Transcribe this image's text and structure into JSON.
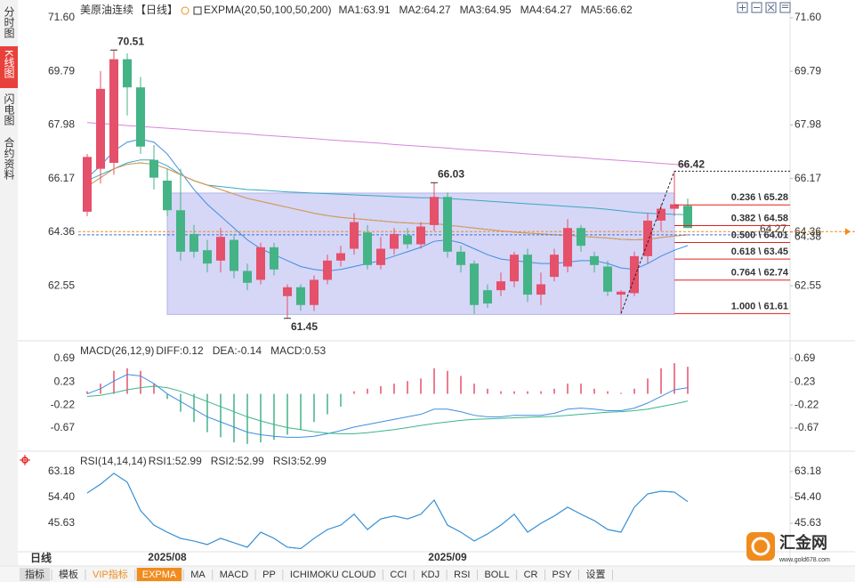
{
  "sidebar": [
    {
      "label": "分时图"
    },
    {
      "label": "K线图",
      "active": true
    },
    {
      "label": "闪电图"
    },
    {
      "label": "合约资料"
    }
  ],
  "chart_data": [
    {
      "type": "candlestick",
      "title": "美原油连续",
      "period_label": "【日线】",
      "indicator": "EXPMA(20,50,100,50,200)",
      "categories": [
        null,
        null,
        null,
        null,
        null,
        null,
        "2025/08",
        null,
        null,
        null,
        null,
        null,
        null,
        null,
        null,
        null,
        null,
        null,
        null,
        null,
        null,
        null,
        null,
        null,
        null,
        null,
        null,
        "2025/09",
        null,
        null,
        null,
        null,
        null,
        null,
        null,
        null,
        null,
        null,
        null,
        null,
        null,
        null,
        null,
        null,
        null,
        null
      ],
      "open": [
        65.05,
        66.5,
        66.7,
        70.2,
        69.25,
        66.8,
        66.1,
        65.1,
        64.3,
        63.75,
        63.4,
        64.1,
        63.05,
        62.75,
        63.85,
        62.2,
        62.5,
        61.9,
        62.75,
        63.4,
        63.8,
        64.35,
        63.25,
        63.8,
        64.25,
        63.95,
        64.6,
        65.55,
        63.7,
        63.3,
        62.4,
        62.4,
        62.7,
        63.6,
        62.25,
        62.85,
        63.2,
        64.5,
        63.55,
        63.2,
        62.25,
        62.3,
        63.55,
        64.75,
        65.15,
        65.25
      ],
      "close": [
        66.9,
        69.2,
        70.2,
        69.25,
        67.25,
        66.2,
        65.1,
        63.7,
        63.7,
        63.3,
        64.2,
        63.05,
        62.65,
        63.85,
        63.1,
        62.5,
        61.9,
        62.75,
        63.4,
        63.65,
        64.7,
        63.25,
        63.8,
        64.3,
        63.95,
        64.55,
        65.55,
        63.7,
        63.25,
        61.9,
        61.95,
        62.7,
        63.6,
        62.25,
        62.6,
        63.6,
        64.5,
        63.9,
        63.25,
        62.35,
        62.35,
        63.55,
        64.75,
        65.15,
        65.3,
        64.5
      ],
      "high": [
        67.0,
        69.8,
        70.51,
        70.4,
        69.6,
        67.3,
        66.5,
        66.5,
        64.6,
        64.1,
        64.5,
        64.3,
        63.3,
        64.0,
        64.0,
        62.6,
        62.6,
        62.9,
        63.6,
        63.9,
        65.0,
        64.6,
        64.2,
        64.5,
        64.5,
        64.7,
        66.03,
        65.7,
        63.9,
        63.4,
        62.6,
        63.0,
        63.7,
        63.8,
        63.0,
        63.8,
        64.8,
        64.6,
        63.7,
        63.4,
        62.4,
        63.7,
        65.0,
        65.3,
        66.42,
        65.5
      ],
      "low": [
        64.9,
        66.0,
        66.3,
        68.3,
        67.0,
        65.8,
        64.9,
        63.4,
        63.5,
        63.0,
        63.0,
        62.8,
        62.4,
        62.6,
        62.9,
        61.45,
        61.7,
        61.7,
        62.6,
        63.2,
        63.6,
        63.1,
        63.1,
        63.6,
        63.8,
        63.8,
        64.4,
        63.5,
        63.0,
        61.6,
        61.8,
        62.2,
        62.5,
        62.0,
        61.9,
        62.7,
        63.0,
        63.7,
        63.0,
        62.2,
        61.61,
        62.2,
        63.3,
        64.4,
        64.9,
        64.5
      ],
      "up_color": "#e5506a",
      "down_color": "#44b386",
      "series": [
        {
          "name": "MA1:63.91",
          "color": "#3d8ee0",
          "values": [
            66.2,
            66.6,
            67.1,
            67.4,
            67.5,
            67.4,
            67.0,
            66.4,
            65.8,
            65.3,
            64.9,
            64.5,
            64.1,
            63.8,
            63.6,
            63.4,
            63.2,
            63.1,
            63.05,
            63.1,
            63.2,
            63.3,
            63.4,
            63.55,
            63.7,
            63.85,
            64.05,
            64.1,
            64.0,
            63.8,
            63.6,
            63.45,
            63.4,
            63.35,
            63.3,
            63.3,
            63.35,
            63.4,
            63.4,
            63.3,
            63.15,
            63.1,
            63.3,
            63.55,
            63.75,
            63.91
          ]
        },
        {
          "name": "MA2:64.27",
          "color": "#3cb4a0",
          "values": [
            65.9,
            66.2,
            66.5,
            66.65,
            66.7,
            66.65,
            66.5,
            66.3,
            66.1,
            65.95,
            65.8,
            65.65,
            65.5,
            65.4,
            65.3,
            65.2,
            65.1,
            65.0,
            64.92,
            64.86,
            64.82,
            64.78,
            64.74,
            64.7,
            64.67,
            64.65,
            64.65,
            64.6,
            64.55,
            64.5,
            64.45,
            64.4,
            64.36,
            64.33,
            64.3,
            64.27,
            64.25,
            64.22,
            64.19,
            64.16,
            64.12,
            64.1,
            64.12,
            64.18,
            64.23,
            64.27
          ]
        },
        {
          "name": "MA3:64.95",
          "color": "#3aa6c4",
          "values": [
            66.1,
            66.3,
            66.5,
            66.7,
            66.8,
            66.8,
            66.6,
            66.3,
            66.1,
            65.95,
            65.9,
            65.85,
            65.8,
            65.78,
            65.75,
            65.72,
            65.7,
            65.68,
            65.66,
            65.64,
            65.62,
            65.6,
            65.58,
            65.56,
            65.54,
            65.52,
            65.52,
            65.5,
            65.47,
            65.44,
            65.41,
            65.38,
            65.35,
            65.32,
            65.29,
            65.26,
            65.23,
            65.2,
            65.17,
            65.13,
            65.08,
            65.03,
            65.0,
            64.98,
            64.96,
            64.95
          ]
        },
        {
          "name": "MA4:64.27",
          "color": "#e8964a",
          "values": [
            65.9,
            66.2,
            66.5,
            66.65,
            66.7,
            66.65,
            66.5,
            66.3,
            66.1,
            65.95,
            65.8,
            65.65,
            65.5,
            65.4,
            65.3,
            65.2,
            65.1,
            65.0,
            64.92,
            64.86,
            64.82,
            64.78,
            64.74,
            64.7,
            64.67,
            64.65,
            64.65,
            64.6,
            64.55,
            64.5,
            64.45,
            64.4,
            64.36,
            64.33,
            64.3,
            64.27,
            64.25,
            64.22,
            64.19,
            64.16,
            64.12,
            64.1,
            64.12,
            64.18,
            64.23,
            64.27
          ]
        },
        {
          "name": "MA5:66.62",
          "color": "#d884d8",
          "values": [
            68.06,
            68.03,
            68.0,
            67.96,
            67.93,
            67.9,
            67.87,
            67.84,
            67.8,
            67.77,
            67.74,
            67.71,
            67.68,
            67.64,
            67.61,
            67.58,
            67.55,
            67.52,
            67.48,
            67.45,
            67.42,
            67.39,
            67.36,
            67.32,
            67.29,
            67.26,
            67.23,
            67.2,
            67.16,
            67.13,
            67.1,
            67.07,
            67.04,
            67.0,
            66.97,
            66.94,
            66.91,
            66.88,
            66.84,
            66.81,
            66.78,
            66.75,
            66.72,
            66.68,
            66.65,
            66.62
          ]
        }
      ],
      "ylim": [
        60.78,
        72.05
      ],
      "yticks": [
        {
          "value": 71.6,
          "label": "71.60"
        },
        {
          "value": 69.79,
          "label": "69.79"
        },
        {
          "value": 67.98,
          "label": "67.98"
        },
        {
          "value": 66.17,
          "label": "66.17"
        },
        {
          "value": 64.36,
          "label": "64.36"
        },
        {
          "value": 62.55,
          "label": "62.55"
        }
      ],
      "annotations": [
        70.51,
        66.03,
        61.45
      ],
      "zone": [
        61.58,
        65.68
      ],
      "zone_color": "#ccccf5",
      "fib": {
        "top": 66.42,
        "color": "#e0201c",
        "levels": [
          {
            "value": 65.28,
            "label": "0.236 \\ 65.28"
          },
          {
            "value": 64.58,
            "label": "0.382 \\ 64.58"
          },
          {
            "value": 64.01,
            "label": "0.500 \\ 64.01"
          },
          {
            "value": 63.45,
            "label": "0.618 \\ 63.45"
          },
          {
            "value": 62.74,
            "label": "0.764 \\ 62.74"
          },
          {
            "value": 61.61,
            "label": "1.000 \\ 61.61"
          }
        ]
      },
      "price_lines": [
        {
          "value": 64.27,
          "color": "#3d6fd8"
        },
        {
          "value": 64.38,
          "color": "#f08c1e",
          "side": "right"
        }
      ]
    },
    {
      "type": "macd",
      "title": "MACD(26,12,9)",
      "series": [
        {
          "name": "DIFF:0.12",
          "color": "#3d8ee0",
          "values": [
            0.0,
            0.1,
            0.25,
            0.38,
            0.35,
            0.2,
            0.0,
            -0.15,
            -0.3,
            -0.45,
            -0.55,
            -0.65,
            -0.75,
            -0.8,
            -0.83,
            -0.85,
            -0.85,
            -0.83,
            -0.78,
            -0.72,
            -0.65,
            -0.6,
            -0.55,
            -0.5,
            -0.45,
            -0.4,
            -0.3,
            -0.3,
            -0.35,
            -0.42,
            -0.45,
            -0.45,
            -0.42,
            -0.42,
            -0.42,
            -0.38,
            -0.3,
            -0.28,
            -0.3,
            -0.33,
            -0.33,
            -0.28,
            -0.18,
            -0.05,
            0.08,
            0.12
          ]
        },
        {
          "name": "DEA:-0.14",
          "color": "#3cb48a",
          "values": [
            -0.05,
            -0.03,
            0.02,
            0.08,
            0.12,
            0.15,
            0.12,
            0.05,
            -0.05,
            -0.15,
            -0.25,
            -0.35,
            -0.45,
            -0.53,
            -0.6,
            -0.66,
            -0.7,
            -0.74,
            -0.77,
            -0.78,
            -0.78,
            -0.76,
            -0.73,
            -0.7,
            -0.66,
            -0.62,
            -0.58,
            -0.55,
            -0.52,
            -0.5,
            -0.49,
            -0.48,
            -0.47,
            -0.46,
            -0.45,
            -0.44,
            -0.42,
            -0.4,
            -0.38,
            -0.36,
            -0.35,
            -0.33,
            -0.3,
            -0.25,
            -0.2,
            -0.14
          ]
        }
      ],
      "histogram": {
        "name": "MACD:0.53",
        "color": "#3d8ee0",
        "up_color": "#e5506a",
        "down_color": "#44b386",
        "values": [
          0.05,
          0.2,
          0.45,
          0.5,
          0.45,
          0.2,
          -0.1,
          -0.35,
          -0.55,
          -0.75,
          -0.85,
          -0.95,
          -0.98,
          -0.95,
          -0.9,
          -0.8,
          -0.7,
          -0.55,
          -0.4,
          -0.25,
          0.05,
          0.1,
          0.15,
          0.2,
          0.25,
          0.3,
          0.5,
          0.45,
          0.35,
          0.2,
          0.1,
          0.05,
          0.05,
          0.05,
          0.05,
          0.1,
          0.2,
          0.2,
          0.1,
          0.05,
          0.02,
          0.1,
          0.3,
          0.5,
          0.6,
          0.53
        ]
      },
      "ylim": [
        -1.0,
        0.95
      ],
      "yticks": [
        0.69,
        0.23,
        -0.22,
        -0.67
      ]
    },
    {
      "type": "line",
      "title": "RSI(14,14,14)",
      "series": [
        {
          "name": "RSI1:52.99",
          "color": "#3d8ee0",
          "values": [
            55.9,
            58.9,
            62.6,
            59.6,
            49.9,
            45.0,
            42.6,
            40.5,
            39.6,
            38.4,
            40.5,
            39.0,
            37.5,
            42.6,
            40.5,
            37.5,
            37.0,
            40.5,
            43.5,
            45.0,
            48.7,
            43.5,
            47.1,
            48.1,
            47.1,
            48.7,
            53.5,
            45.0,
            42.6,
            39.6,
            42.0,
            45.0,
            48.7,
            42.6,
            45.6,
            48.1,
            51.1,
            48.7,
            46.5,
            43.5,
            42.6,
            51.1,
            55.6,
            56.5,
            56.2,
            52.99
          ]
        },
        {
          "name": "RSI2:52.99",
          "color": "#3cb48a",
          "values": [
            55.9,
            58.9,
            62.6,
            59.6,
            49.9,
            45.0,
            42.6,
            40.5,
            39.6,
            38.4,
            40.5,
            39.0,
            37.5,
            42.6,
            40.5,
            37.5,
            37.0,
            40.5,
            43.5,
            45.0,
            48.7,
            43.5,
            47.1,
            48.1,
            47.1,
            48.7,
            53.5,
            45.0,
            42.6,
            39.6,
            42.0,
            45.0,
            48.7,
            42.6,
            45.6,
            48.1,
            51.1,
            48.7,
            46.5,
            43.5,
            42.6,
            51.1,
            55.6,
            56.5,
            56.2,
            52.99
          ]
        },
        {
          "name": "RSI3:52.99",
          "color": "#3d8ee0",
          "values": [
            55.9,
            58.9,
            62.6,
            59.6,
            49.9,
            45.0,
            42.6,
            40.5,
            39.6,
            38.4,
            40.5,
            39.0,
            37.5,
            42.6,
            40.5,
            37.5,
            37.0,
            40.5,
            43.5,
            45.0,
            48.7,
            43.5,
            47.1,
            48.1,
            47.1,
            48.7,
            53.5,
            45.0,
            42.6,
            39.6,
            42.0,
            45.0,
            48.7,
            42.6,
            45.6,
            48.1,
            51.1,
            48.7,
            46.5,
            43.5,
            42.6,
            51.1,
            55.6,
            56.5,
            56.2,
            52.99
          ]
        }
      ],
      "ylim": [
        36.56,
        68.6
      ],
      "yticks": [
        63.18,
        {
          "value": 54.4,
          "label": "54.40"
        },
        45.63
      ]
    }
  ],
  "period": "日线",
  "toolbar": [
    {
      "label": "指标",
      "boxed": true
    },
    {
      "label": "模板"
    },
    {
      "label": "VIP指标",
      "highlight": true
    },
    {
      "label": "EXPMA",
      "active": true
    },
    {
      "label": "MA"
    },
    {
      "label": "MACD"
    },
    {
      "label": "PP"
    },
    {
      "label": "ICHIMOKU CLOUD"
    },
    {
      "label": "CCI"
    },
    {
      "label": "KDJ"
    },
    {
      "label": "RSI"
    },
    {
      "label": "BOLL"
    },
    {
      "label": "CR"
    },
    {
      "label": "PSY"
    },
    {
      "label": "设置"
    }
  ],
  "logo": {
    "name": "汇金网",
    "url": "www.gold678.com"
  }
}
